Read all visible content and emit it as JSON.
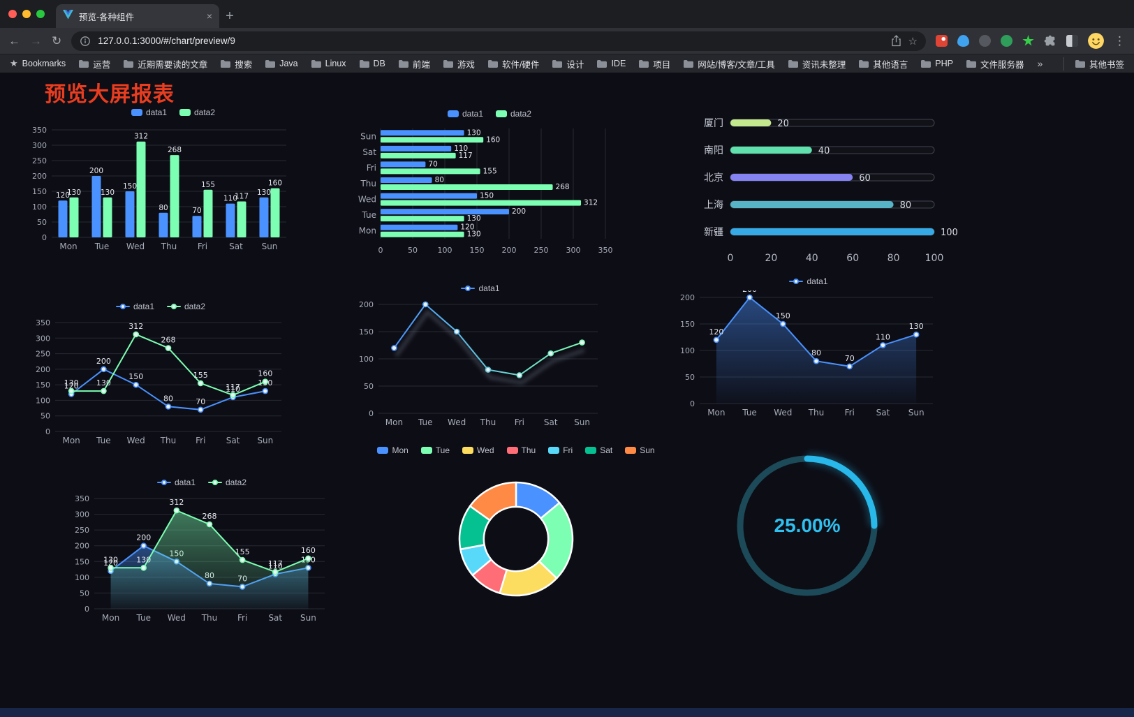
{
  "window": {
    "tab": {
      "title": "预览-各种组件"
    }
  },
  "icons": {
    "back": "←",
    "forward": "→",
    "reload": "↻",
    "menu": "⋮",
    "bookmark_star": "☆",
    "new_tab": "+",
    "tab_close": "×",
    "bookmarks_root_star": "★"
  },
  "toolbar": {
    "url": "127.0.0.1:3000/#/chart/preview/9"
  },
  "bookmarks_bar": {
    "root_label": "Bookmarks",
    "folders": [
      "运营",
      "近期需要读的文章",
      "搜索",
      "Java",
      "Linux",
      "DB",
      "前端",
      "游戏",
      "软件/硬件",
      "设计",
      "IDE",
      "项目",
      "网站/博客/文章/工具",
      "资讯未整理",
      "其他语言",
      "PHP",
      "文件服务器"
    ],
    "overflow_label": "»",
    "other_bookmarks_label": "其他书签"
  },
  "page": {
    "title": "预览大屏报表",
    "title_color": "#e93d20"
  },
  "theme": {
    "background": "#0d0d15",
    "grid": "#272a33",
    "axis_label": "#a6abb7",
    "value_label": "#e4e7ee",
    "series_blue": "#4992ff",
    "series_green": "#7cffb2"
  },
  "chart_data": [
    {
      "id": "bar-grouped",
      "type": "bar",
      "categories": [
        "Mon",
        "Tue",
        "Wed",
        "Thu",
        "Fri",
        "Sat",
        "Sun"
      ],
      "series": [
        {
          "name": "data1",
          "color": "#4992ff",
          "values": [
            120,
            200,
            150,
            80,
            70,
            110,
            130
          ]
        },
        {
          "name": "data2",
          "color": "#7cffb2",
          "values": [
            130,
            130,
            312,
            268,
            155,
            117,
            160
          ]
        }
      ],
      "ylim": [
        0,
        350
      ],
      "yticks": [
        0,
        50,
        100,
        150,
        200,
        250,
        300,
        350
      ],
      "grid": true,
      "legend_position": "top",
      "value_labels": true
    },
    {
      "id": "bar-horizontal",
      "type": "bar-horizontal",
      "categories": [
        "Mon",
        "Tue",
        "Wed",
        "Thu",
        "Fri",
        "Sat",
        "Sun"
      ],
      "series": [
        {
          "name": "data1",
          "color": "#4992ff",
          "values": [
            120,
            200,
            150,
            80,
            70,
            110,
            130
          ]
        },
        {
          "name": "data2",
          "color": "#7cffb2",
          "values": [
            130,
            130,
            312,
            268,
            155,
            117,
            160
          ]
        }
      ],
      "xlim": [
        0,
        350
      ],
      "xticks": [
        0,
        50,
        100,
        150,
        200,
        250,
        300,
        350
      ],
      "grid": true,
      "legend_position": "top",
      "value_labels": true
    },
    {
      "id": "city-progress",
      "type": "progress-bars",
      "items": [
        {
          "label": "厦门",
          "value": 20,
          "color": "#c3e88d"
        },
        {
          "label": "南阳",
          "value": 40,
          "color": "#5fe0ac"
        },
        {
          "label": "北京",
          "value": 60,
          "color": "#8583f2"
        },
        {
          "label": "上海",
          "value": 80,
          "color": "#56b4c6"
        },
        {
          "label": "新疆",
          "value": 100,
          "color": "#35aae6"
        }
      ],
      "max": 100,
      "xticks": [
        0,
        20,
        40,
        60,
        80,
        100
      ]
    },
    {
      "id": "line-two",
      "type": "line",
      "categories": [
        "Mon",
        "Tue",
        "Wed",
        "Thu",
        "Fri",
        "Sat",
        "Sun"
      ],
      "series": [
        {
          "name": "data1",
          "color": "#4992ff",
          "values": [
            120,
            200,
            150,
            80,
            70,
            110,
            130
          ]
        },
        {
          "name": "data2",
          "color": "#7cffb2",
          "values": [
            130,
            130,
            312,
            268,
            155,
            117,
            160
          ]
        }
      ],
      "ylim": [
        0,
        350
      ],
      "yticks": [
        0,
        50,
        100,
        150,
        200,
        250,
        300,
        350
      ],
      "grid": true,
      "legend_position": "top",
      "value_labels": true
    },
    {
      "id": "line-gradient",
      "type": "line",
      "categories": [
        "Mon",
        "Tue",
        "Wed",
        "Thu",
        "Fri",
        "Sat",
        "Sun"
      ],
      "series": [
        {
          "name": "data1",
          "color": "#4992ff",
          "color_end": "#7cffb2",
          "values": [
            120,
            200,
            150,
            80,
            70,
            110,
            130
          ]
        }
      ],
      "ylim": [
        0,
        200
      ],
      "yticks": [
        0,
        50,
        100,
        150,
        200
      ],
      "grid": true,
      "legend_position": "top",
      "value_labels": false,
      "gradient_line": true,
      "shadow": true
    },
    {
      "id": "area-one",
      "type": "area",
      "categories": [
        "Mon",
        "Tue",
        "Wed",
        "Thu",
        "Fri",
        "Sat",
        "Sun"
      ],
      "series": [
        {
          "name": "data1",
          "color": "#4992ff",
          "values": [
            120,
            200,
            150,
            80,
            70,
            110,
            130
          ]
        }
      ],
      "ylim": [
        0,
        200
      ],
      "yticks": [
        0,
        50,
        100,
        150,
        200
      ],
      "grid": true,
      "legend_position": "top",
      "value_labels": true
    },
    {
      "id": "area-two",
      "type": "area",
      "categories": [
        "Mon",
        "Tue",
        "Wed",
        "Thu",
        "Fri",
        "Sat",
        "Sun"
      ],
      "series": [
        {
          "name": "data1",
          "color": "#4992ff",
          "values": [
            120,
            200,
            150,
            80,
            70,
            110,
            130
          ]
        },
        {
          "name": "data2",
          "color": "#7cffb2",
          "values": [
            130,
            130,
            312,
            268,
            155,
            117,
            160
          ]
        }
      ],
      "ylim": [
        0,
        350
      ],
      "yticks": [
        0,
        50,
        100,
        150,
        200,
        250,
        300,
        350
      ],
      "grid": true,
      "legend_position": "top",
      "value_labels": true
    },
    {
      "id": "weekday-donut",
      "type": "pie",
      "labels": [
        "Mon",
        "Tue",
        "Wed",
        "Thu",
        "Fri",
        "Sat",
        "Sun"
      ],
      "values": [
        120,
        200,
        150,
        80,
        70,
        110,
        130
      ],
      "colors": [
        "#4992ff",
        "#7cffb2",
        "#fddd60",
        "#ff6e76",
        "#58d9f9",
        "#05c091",
        "#ff8a45"
      ],
      "inner_radius_ratio": 0.57,
      "border_color": "#ffffff",
      "legend_position": "top"
    },
    {
      "id": "percent-gauge",
      "type": "gauge",
      "value": 25,
      "max": 100,
      "label": "25.00%",
      "color": "#28b9ea",
      "track_color": "#1c4a58",
      "label_color": "#2fc0f0"
    }
  ]
}
